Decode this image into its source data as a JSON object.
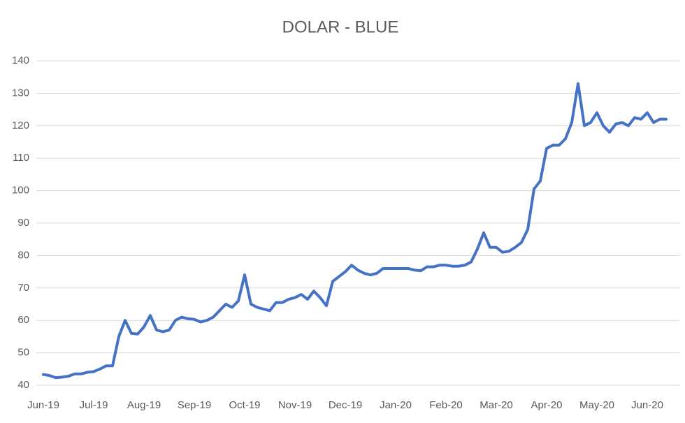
{
  "chart_data": {
    "type": "line",
    "title": "DOLAR - BLUE",
    "categories": [
      "Jun-19",
      null,
      null,
      null,
      null,
      null,
      null,
      null,
      "Jul-19",
      null,
      null,
      null,
      null,
      null,
      null,
      null,
      "Aug-19",
      null,
      null,
      null,
      null,
      null,
      null,
      null,
      "Sep-19",
      null,
      null,
      null,
      null,
      null,
      null,
      null,
      "Oct-19",
      null,
      null,
      null,
      null,
      null,
      null,
      null,
      "Nov-19",
      null,
      null,
      null,
      null,
      null,
      null,
      null,
      "Dec-19",
      null,
      null,
      null,
      null,
      null,
      null,
      null,
      "Jan-20",
      null,
      null,
      null,
      null,
      null,
      null,
      null,
      "Feb-20",
      null,
      null,
      null,
      null,
      null,
      null,
      null,
      "Mar-20",
      null,
      null,
      null,
      null,
      null,
      null,
      null,
      "Apr-20",
      null,
      null,
      null,
      null,
      null,
      null,
      null,
      "May-20",
      null,
      null,
      null,
      null,
      null,
      null,
      null,
      "Jun-20",
      null,
      null,
      null
    ],
    "values": [
      43.3,
      43,
      42.3,
      42.5,
      42.8,
      43.5,
      43.5,
      44,
      44.2,
      45,
      46,
      46,
      55,
      60,
      56,
      55.8,
      58,
      61.5,
      57,
      56.5,
      57,
      60,
      61,
      60.5,
      60.3,
      59.5,
      60,
      61,
      63,
      65,
      64,
      66,
      74,
      65,
      64,
      63.5,
      63,
      65.5,
      65.5,
      66.5,
      67,
      68,
      66.5,
      69,
      67,
      64.5,
      72,
      73.5,
      75,
      77,
      75.5,
      74.5,
      74,
      74.5,
      76,
      76,
      76,
      76,
      76,
      75.5,
      75.3,
      76.5,
      76.5,
      77,
      77,
      76.7,
      76.7,
      77,
      78,
      82,
      87,
      82.5,
      82.5,
      81,
      81.3,
      82.5,
      84,
      88,
      100.5,
      103,
      113,
      114,
      114,
      116,
      121,
      133,
      120,
      121,
      124,
      120,
      118,
      120.5,
      121,
      120,
      122.5,
      122,
      124,
      121,
      122,
      122
    ],
    "color": "#4472c4",
    "ylim": [
      40,
      140
    ],
    "yticks": [
      40,
      50,
      60,
      70,
      80,
      90,
      100,
      110,
      120,
      130,
      140
    ],
    "grid": true
  }
}
